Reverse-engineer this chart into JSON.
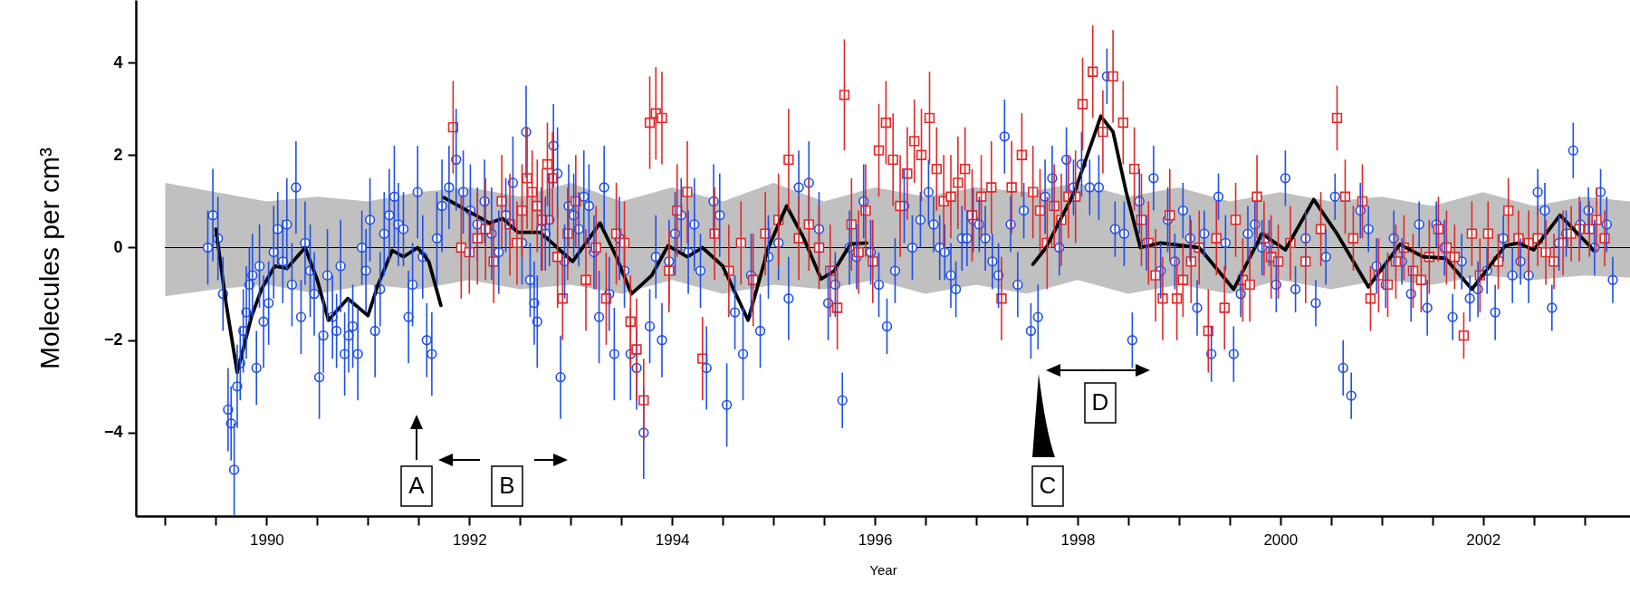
{
  "chart_data": {
    "type": "scatter",
    "xlabel": "Year",
    "ylabel": "Molecules per cm³",
    "xlim": [
      1988.71,
      2003.45
    ],
    "ylim": [
      -5.8,
      5.35
    ],
    "xticks": [
      {
        "value": 1989,
        "label": null
      },
      {
        "value": 1989.5,
        "label": null
      },
      1990,
      {
        "value": 1990.5,
        "label": null
      },
      {
        "value": 1991,
        "label": null
      },
      {
        "value": 1991.5,
        "label": null
      },
      1992,
      {
        "value": 1992.5,
        "label": null
      },
      {
        "value": 1993,
        "label": null
      },
      {
        "value": 1993.5,
        "label": null
      },
      1994,
      {
        "value": 1994.5,
        "label": null
      },
      {
        "value": 1995,
        "label": null
      },
      {
        "value": 1995.5,
        "label": null
      },
      1996,
      {
        "value": 1996.5,
        "label": null
      },
      {
        "value": 1997,
        "label": null
      },
      {
        "value": 1997.5,
        "label": null
      },
      1998,
      {
        "value": 1998.5,
        "label": null
      },
      {
        "value": 1999,
        "label": null
      },
      {
        "value": 1999.5,
        "label": null
      },
      2000,
      {
        "value": 2000.5,
        "label": null
      },
      {
        "value": 2001,
        "label": null
      },
      {
        "value": 2001.5,
        "label": null
      },
      2002,
      {
        "value": 2002.5,
        "label": null
      },
      {
        "value": 2003,
        "label": null
      }
    ],
    "yticks": [
      -4,
      -2,
      0,
      2,
      4
    ],
    "annotations": [
      "A",
      "B",
      "C",
      "D"
    ],
    "series": [
      {
        "type": "line",
        "color": "#000000",
        "x": [
          1989,
          1989.5,
          1990,
          1990.5,
          1991,
          1991.5,
          1992,
          1992.5,
          1993,
          1993.5,
          1994,
          1994.5,
          1995,
          1995.5,
          1996,
          1996.5,
          1997,
          1997.5,
          1998,
          1998.5,
          1999,
          1999.5,
          2000,
          2000.5,
          2001,
          2001.5,
          2002,
          2002.5,
          2003,
          2003.45
        ],
        "values": [
          0,
          0,
          0,
          0,
          0,
          0,
          0,
          0,
          0,
          0,
          0,
          0,
          0,
          0,
          0,
          0,
          0,
          0,
          0,
          0,
          0,
          0,
          0,
          0,
          0,
          0,
          0,
          0,
          0,
          0
        ],
        "upper": [
          1.4,
          1.2,
          1.0,
          1.1,
          1.0,
          1.2,
          1.3,
          1.1,
          1.4,
          1.0,
          1.3,
          1.0,
          1.4,
          1.0,
          1.3,
          1.1,
          1.3,
          1.2,
          1.4,
          1.1,
          1.3,
          1.0,
          1.2,
          1.0,
          1.1,
          0.9,
          1.2,
          0.9,
          1.1,
          1.0
        ],
        "lower": [
          -1.05,
          -0.9,
          -0.8,
          -1.0,
          -0.8,
          -0.9,
          -0.7,
          -0.9,
          -0.8,
          -1.0,
          -0.7,
          -1.0,
          -0.8,
          -0.9,
          -0.7,
          -1.0,
          -0.8,
          -1.0,
          -0.7,
          -1.0,
          -0.8,
          -1.0,
          -0.7,
          -0.9,
          -0.7,
          -0.8,
          -0.6,
          -0.7,
          -0.6,
          -0.65
        ]
      },
      {
        "marker": "circle",
        "color": "#1f4fe6",
        "x": [
          1989.42,
          1989.47,
          1989.52,
          1989.57,
          1989.62,
          1989.65,
          1989.68,
          1989.71,
          1989.74,
          1989.77,
          1989.8,
          1989.83,
          1989.86,
          1989.9,
          1989.93,
          1989.97,
          1990.02,
          1990.07,
          1990.11,
          1990.16,
          1990.2,
          1990.25,
          1990.29,
          1990.34,
          1990.38,
          1990.43,
          1990.47,
          1990.52,
          1990.56,
          1990.6,
          1990.65,
          1990.69,
          1990.73,
          1990.77,
          1990.81,
          1990.85,
          1990.9,
          1990.94,
          1990.98,
          1991.02,
          1991.07,
          1991.12,
          1991.16,
          1991.21,
          1991.26,
          1991.3,
          1991.35,
          1991.4,
          1991.44,
          1991.49,
          1991.54,
          1991.58,
          1991.63,
          1991.68,
          1991.73,
          1991.8,
          1991.87,
          1991.94,
          1992.01,
          1992.08,
          1992.15,
          1992.22,
          1992.29,
          1992.36,
          1992.43,
          1992.52,
          1992.56,
          1992.6,
          1992.64,
          1992.67,
          1992.71,
          1992.75,
          1992.79,
          1992.83,
          1992.87,
          1992.9,
          1992.94,
          1992.98,
          1993.03,
          1993.08,
          1993.13,
          1993.18,
          1993.23,
          1993.28,
          1993.33,
          1993.38,
          1993.43,
          1993.48,
          1993.53,
          1993.59,
          1993.65,
          1993.72,
          1993.78,
          1993.84,
          1993.9,
          1993.97,
          1994.03,
          1994.09,
          1994.16,
          1994.22,
          1994.28,
          1994.34,
          1994.41,
          1994.47,
          1994.54,
          1994.62,
          1994.7,
          1994.78,
          1994.87,
          1994.95,
          1995.05,
          1995.15,
          1995.25,
          1995.35,
          1995.45,
          1995.54,
          1995.61,
          1995.68,
          1995.75,
          1995.82,
          1995.89,
          1995.96,
          1996.04,
          1996.12,
          1996.2,
          1996.29,
          1996.37,
          1996.45,
          1996.53,
          1996.58,
          1996.64,
          1996.69,
          1996.75,
          1996.8,
          1996.86,
          1996.91,
          1996.97,
          1997.03,
          1997.09,
          1997.16,
          1997.22,
          1997.28,
          1997.34,
          1997.41,
          1997.47,
          1997.54,
          1997.61,
          1997.68,
          1997.75,
          1997.82,
          1997.89,
          1997.96,
          1998.04,
          1998.12,
          1998.21,
          1998.29,
          1998.37,
          1998.46,
          1998.54,
          1998.61,
          1998.68,
          1998.75,
          1998.82,
          1998.89,
          1998.96,
          1999.04,
          1999.11,
          1999.18,
          1999.25,
          1999.32,
          1999.39,
          1999.46,
          1999.54,
          1999.61,
          1999.68,
          1999.75,
          1999.82,
          1999.89,
          1999.96,
          2000.05,
          2000.15,
          2000.25,
          2000.35,
          2000.45,
          2000.54,
          2000.62,
          2000.7,
          2000.79,
          2000.87,
          2000.95,
          2001.04,
          2001.12,
          2001.2,
          2001.29,
          2001.37,
          2001.45,
          2001.54,
          2001.62,
          2001.7,
          2001.79,
          2001.87,
          2001.95,
          2002.04,
          2002.12,
          2002.2,
          2002.29,
          2002.37,
          2002.45,
          2002.54,
          2002.61,
          2002.68,
          2002.75,
          2002.82,
          2002.89,
          2002.96,
          2003.04,
          2003.1,
          2003.16,
          2003.22,
          2003.28
        ],
        "values": [
          0,
          0.7,
          0.2,
          -1.0,
          -3.5,
          -3.8,
          -4.8,
          -3.0,
          -2.5,
          -1.8,
          -1.4,
          -0.8,
          -0.6,
          -2.6,
          -0.4,
          -1.6,
          -1.2,
          -0.1,
          0.4,
          -0.3,
          0.5,
          -0.8,
          1.3,
          -1.5,
          0.1,
          -0.5,
          -1.0,
          -2.8,
          -1.9,
          -0.6,
          -1.5,
          -1.8,
          -0.4,
          -2.3,
          -1.9,
          -1.7,
          -2.3,
          0.0,
          -0.5,
          0.6,
          -1.8,
          -0.9,
          0.3,
          0.7,
          1.1,
          0.5,
          0.4,
          -1.5,
          -0.8,
          1.2,
          -0.2,
          -2.0,
          -2.3,
          0.2,
          0.9,
          1.3,
          1.9,
          1.2,
          0.8,
          0.5,
          1.0,
          0.3,
          -0.1,
          0.7,
          1.4,
          0.1,
          2.5,
          -0.7,
          -1.2,
          -1.6,
          0.4,
          0.3,
          0.6,
          2.2,
          1.6,
          -2.8,
          -0.3,
          0.9,
          0.7,
          0.4,
          1.1,
          0.9,
          -0.1,
          -1.5,
          1.3,
          -1.0,
          -2.3,
          0.2,
          -0.5,
          -2.3,
          -2.6,
          -4.0,
          -1.7,
          -0.2,
          -2.0,
          -0.3,
          0.3,
          0.7,
          -0.1,
          0.5,
          -0.5,
          -2.6,
          1.0,
          0.7,
          -3.4,
          -1.4,
          -2.3,
          -0.6,
          -1.8,
          -0.2,
          0.1,
          -1.1,
          1.3,
          1.4,
          0.4,
          -1.2,
          -0.8,
          -3.3,
          0.0,
          -0.2,
          1.0,
          -0.1,
          -0.8,
          -1.7,
          -0.5,
          0.9,
          0.0,
          0.6,
          1.2,
          0.5,
          0.0,
          -0.1,
          -0.6,
          -0.9,
          0.2,
          0.2,
          0.6,
          0.5,
          0.2,
          -0.3,
          -0.6,
          2.4,
          0.5,
          -0.8,
          0.8,
          -1.8,
          -1.5,
          1.1,
          1.5,
          0.0,
          1.9,
          1.3,
          1.8,
          1.3,
          1.3,
          3.7,
          0.4,
          0.3,
          -2.0,
          1.0,
          0.1,
          1.5,
          -0.5,
          0.6,
          -0.3,
          0.8,
          0.2,
          -1.3,
          0.3,
          -2.3,
          1.1,
          0.1,
          -2.3,
          -1.0,
          0.3,
          0.5,
          0.0,
          0.1,
          -0.8,
          1.5,
          -0.9,
          0.2,
          -1.2,
          -0.2,
          1.1,
          -2.6,
          -3.2,
          0.8,
          0.4,
          -0.4,
          -0.8,
          0.2,
          -0.3,
          -1.0,
          0.5,
          -1.3,
          0.5,
          0.0,
          -1.5,
          -0.3,
          -1.1,
          -0.9,
          -0.5,
          -1.4,
          0.2,
          -0.6,
          -0.3,
          -0.6,
          1.2,
          0.8,
          -1.3,
          0.1,
          0.3,
          2.1,
          0.5,
          0.8,
          0.0,
          1.2,
          0.5,
          -0.7
        ],
        "errors": [
          0.8,
          1.0,
          0.9,
          0.8,
          0.9,
          0.8,
          1.0,
          0.9,
          0.8,
          0.9,
          1.0,
          0.8,
          0.9,
          0.8,
          0.9,
          1.0,
          0.9,
          1.0,
          0.8,
          0.9,
          1.0,
          0.9,
          1.0,
          0.8,
          0.9,
          1.0,
          0.9,
          0.9,
          0.8,
          1.0,
          0.9,
          0.8,
          1.0,
          0.9,
          0.8,
          0.9,
          1.0,
          0.8,
          0.9,
          0.9,
          1.0,
          0.8,
          0.9,
          1.0,
          1.1,
          0.9,
          0.8,
          1.0,
          0.9,
          1.0,
          0.9,
          0.8,
          0.9,
          1.0,
          1.0,
          0.9,
          1.1,
          0.9,
          1.0,
          0.8,
          0.9,
          1.0,
          0.9,
          0.8,
          1.0,
          0.9,
          1.0,
          0.8,
          0.9,
          1.0,
          0.9,
          0.8,
          1.0,
          0.9,
          1.0,
          0.9,
          0.8,
          0.9,
          0.9,
          0.8,
          1.0,
          0.9,
          0.8,
          1.0,
          0.9,
          0.8,
          1.0,
          0.9,
          0.8,
          1.0,
          0.9,
          1.0,
          0.8,
          0.9,
          0.8,
          0.9,
          0.9,
          0.8,
          0.9,
          1.0,
          0.8,
          0.9,
          0.8,
          0.9,
          0.9,
          0.8,
          1.0,
          0.9,
          0.8,
          0.9,
          0.8,
          0.9,
          0.8,
          0.9,
          0.8,
          0.8,
          0.7,
          0.6,
          0.8,
          0.7,
          0.8,
          0.7,
          0.7,
          0.6,
          0.7,
          0.8,
          0.7,
          0.6,
          0.7,
          0.6,
          0.7,
          0.6,
          0.7,
          0.6,
          0.7,
          0.6,
          0.7,
          0.6,
          0.7,
          0.6,
          0.7,
          0.8,
          0.6,
          0.7,
          0.6,
          0.6,
          0.7,
          0.8,
          0.7,
          0.6,
          0.7,
          0.6,
          0.7,
          0.6,
          0.7,
          0.6,
          0.6,
          0.7,
          0.6,
          0.7,
          0.6,
          0.7,
          0.6,
          0.7,
          0.6,
          0.6,
          0.5,
          0.6,
          0.5,
          0.6,
          0.5,
          0.6,
          0.6,
          0.5,
          0.6,
          0.5,
          0.6,
          0.5,
          0.6,
          0.6,
          0.5,
          0.6,
          0.5,
          0.6,
          0.5,
          0.6,
          0.5,
          0.6,
          0.5,
          0.6,
          0.5,
          0.6,
          0.5,
          0.6,
          0.5,
          0.6,
          0.5,
          0.6,
          0.5,
          0.6,
          0.5,
          0.6,
          0.5,
          0.6,
          0.5,
          0.6,
          0.5,
          0.6,
          0.5,
          0.6,
          0.5,
          0.6,
          0.5,
          0.6,
          0.5,
          0.5,
          0.6,
          0.5,
          0.6,
          0.5
        ]
      },
      {
        "marker": "square",
        "color": "#e02828",
        "x": [
          1991.84,
          1991.92,
          1992.0,
          1992.08,
          1992.16,
          1992.24,
          1992.32,
          1992.4,
          1992.47,
          1992.52,
          1992.57,
          1992.62,
          1992.67,
          1992.72,
          1992.77,
          1992.82,
          1992.87,
          1992.92,
          1992.97,
          1993.05,
          1993.15,
          1993.25,
          1993.35,
          1993.45,
          1993.53,
          1993.59,
          1993.65,
          1993.72,
          1993.78,
          1993.84,
          1993.9,
          1993.97,
          1994.05,
          1994.15,
          1994.3,
          1994.42,
          1994.56,
          1994.68,
          1994.8,
          1994.92,
          1995.05,
          1995.15,
          1995.25,
          1995.35,
          1995.45,
          1995.56,
          1995.63,
          1995.7,
          1995.77,
          1995.84,
          1995.91,
          1995.98,
          1996.04,
          1996.11,
          1996.18,
          1996.25,
          1996.32,
          1996.39,
          1996.46,
          1996.54,
          1996.61,
          1996.68,
          1996.75,
          1996.82,
          1996.89,
          1996.96,
          1997.05,
          1997.15,
          1997.25,
          1997.35,
          1997.45,
          1997.56,
          1997.63,
          1997.7,
          1997.77,
          1997.84,
          1997.91,
          1997.98,
          1998.05,
          1998.15,
          1998.25,
          1998.35,
          1998.45,
          1998.56,
          1998.63,
          1998.7,
          1998.77,
          1998.84,
          1998.91,
          1998.98,
          1999.04,
          1999.12,
          1999.2,
          1999.29,
          1999.37,
          1999.45,
          1999.56,
          1999.63,
          1999.7,
          1999.77,
          1999.84,
          1999.91,
          1999.98,
          2000.1,
          2000.25,
          2000.4,
          2000.56,
          2000.64,
          2000.72,
          2000.81,
          2000.89,
          2000.97,
          2001.06,
          2001.14,
          2001.22,
          2001.31,
          2001.39,
          2001.47,
          2001.56,
          2001.64,
          2001.72,
          2001.81,
          2001.89,
          2001.97,
          2002.05,
          2002.15,
          2002.25,
          2002.35,
          2002.45,
          2002.54,
          2002.62,
          2002.7,
          2002.79,
          2002.87,
          2002.95,
          2003.05,
          2003.12,
          2003.2
        ],
        "values": [
          2.6,
          0.0,
          -0.1,
          0.2,
          0.4,
          -0.3,
          1.0,
          0.5,
          0.1,
          0.8,
          1.5,
          1.2,
          0.9,
          0.6,
          1.8,
          1.5,
          -0.2,
          -1.1,
          0.3,
          1.0,
          -0.7,
          0.0,
          -1.1,
          0.3,
          0.1,
          -1.6,
          -2.2,
          -3.3,
          2.7,
          2.9,
          2.8,
          -0.5,
          0.8,
          1.2,
          -2.4,
          0.3,
          -0.5,
          0.1,
          -0.7,
          0.3,
          0.6,
          1.9,
          0.2,
          0.5,
          0.0,
          -0.5,
          -1.3,
          3.3,
          0.5,
          -0.1,
          0.8,
          -0.3,
          2.1,
          2.7,
          1.9,
          0.9,
          1.6,
          2.3,
          2.0,
          2.8,
          1.7,
          1.0,
          1.1,
          1.4,
          1.7,
          0.7,
          1.1,
          1.3,
          -1.1,
          1.3,
          2.0,
          1.2,
          0.8,
          0.1,
          0.9,
          0.6,
          1.1,
          1.1,
          3.1,
          3.8,
          2.5,
          3.7,
          2.7,
          1.7,
          0.6,
          0.1,
          -0.6,
          -1.1,
          0.7,
          -1.1,
          -0.7,
          -0.3,
          0.0,
          -1.8,
          0.2,
          -1.3,
          0.6,
          -0.7,
          -0.8,
          1.1,
          0.2,
          -0.2,
          -0.3,
          0.1,
          -0.3,
          0.4,
          2.8,
          1.1,
          0.2,
          1.0,
          -1.1,
          -0.6,
          -0.8,
          -0.3,
          0.0,
          -0.5,
          -0.7,
          -0.2,
          0.4,
          0.0,
          -0.2,
          -1.9,
          0.3,
          -0.6,
          0.3,
          -0.3,
          0.8,
          0.2,
          0.1,
          0.2,
          -0.1,
          -0.3,
          0.1,
          0.3,
          0.4,
          0.4,
          0.6,
          0.2
        ],
        "errors": [
          1.0,
          1.1,
          0.9,
          1.0,
          1.1,
          0.9,
          1.0,
          1.1,
          0.9,
          1.0,
          1.1,
          0.9,
          1.0,
          1.1,
          0.9,
          1.0,
          1.1,
          0.9,
          1.0,
          1.0,
          1.1,
          0.9,
          1.0,
          1.1,
          0.9,
          1.0,
          1.1,
          0.9,
          1.0,
          1.0,
          1.0,
          0.9,
          1.0,
          1.1,
          0.9,
          1.0,
          1.0,
          0.9,
          1.0,
          0.9,
          1.0,
          1.1,
          0.9,
          1.0,
          0.9,
          1.0,
          0.9,
          1.2,
          1.0,
          0.9,
          1.0,
          0.9,
          1.0,
          0.9,
          1.0,
          1.1,
          1.0,
          0.9,
          1.0,
          1.0,
          0.9,
          1.0,
          0.9,
          1.0,
          0.9,
          1.0,
          0.9,
          1.0,
          0.9,
          1.0,
          0.9,
          1.0,
          0.9,
          1.0,
          0.9,
          1.0,
          0.9,
          1.0,
          1.0,
          1.0,
          0.9,
          1.0,
          0.9,
          0.9,
          1.0,
          0.9,
          1.0,
          0.9,
          1.0,
          0.9,
          0.8,
          0.9,
          0.8,
          0.9,
          0.8,
          0.9,
          0.8,
          0.9,
          0.8,
          0.9,
          0.8,
          0.9,
          0.8,
          0.8,
          0.9,
          0.8,
          0.7,
          0.8,
          0.7,
          0.8,
          0.7,
          0.8,
          0.7,
          0.8,
          0.7,
          0.8,
          0.7,
          0.8,
          0.7,
          0.8,
          0.7,
          0.5,
          0.7,
          0.8,
          0.7,
          0.6,
          0.7,
          0.6,
          0.7,
          0.6,
          0.7,
          0.6,
          0.7,
          0.6,
          0.7,
          0.6,
          0.7,
          0.6
        ]
      },
      {
        "type": "line",
        "color": "#000000",
        "x": [
          1989.5,
          1989.6,
          1989.71,
          1989.85,
          1989.95,
          1990.08,
          1990.2,
          1990.38,
          1990.5,
          1990.61,
          1990.8,
          1991.0,
          1991.1,
          1991.24,
          1991.35,
          1991.49,
          1991.6,
          1991.72,
          1991.73,
          1991.75,
          1992.2,
          1992.33,
          1992.48,
          1992.7,
          1993.02,
          1993.29,
          1993.45,
          1993.6,
          1993.8,
          1993.96,
          1994.15,
          1994.3,
          1994.5,
          1994.75,
          1994.95,
          1995.13,
          1995.3,
          1995.47,
          1995.6,
          1995.76,
          1995.92,
          1996.5,
          1997.56,
          1997.69,
          1997.97,
          1998.23,
          1998.35,
          1998.48,
          1998.62,
          1998.82,
          1999.2,
          1999.54,
          1999.82,
          2000.05,
          2000.33,
          2000.56,
          2000.87,
          2001.18,
          2001.41,
          2001.63,
          2001.89,
          2002.22,
          2002.35,
          2002.5,
          2002.76,
          2003.09
        ],
        "values": [
          0.4,
          -1.2,
          -2.7,
          -1.5,
          -0.9,
          -0.4,
          -0.45,
          0.0,
          -0.7,
          -1.57,
          -1.1,
          -1.47,
          -0.8,
          -0.06,
          -0.2,
          0.0,
          -0.3,
          -1.25,
          null,
          1.08,
          0.53,
          0.63,
          0.33,
          0.33,
          -0.3,
          0.53,
          -0.2,
          -1.0,
          -0.6,
          0.04,
          -0.2,
          0.0,
          -0.4,
          -1.57,
          0.0,
          0.9,
          0.2,
          -0.68,
          -0.5,
          0.08,
          0.1,
          null,
          -0.36,
          0.0,
          1.2,
          2.84,
          2.5,
          1.2,
          0.0,
          0.1,
          0.0,
          -0.9,
          0.3,
          -0.05,
          1.04,
          0.3,
          -0.85,
          0.07,
          -0.2,
          -0.23,
          -0.9,
          0.04,
          0.1,
          -0.05,
          0.7,
          -0.05
        ]
      }
    ]
  }
}
